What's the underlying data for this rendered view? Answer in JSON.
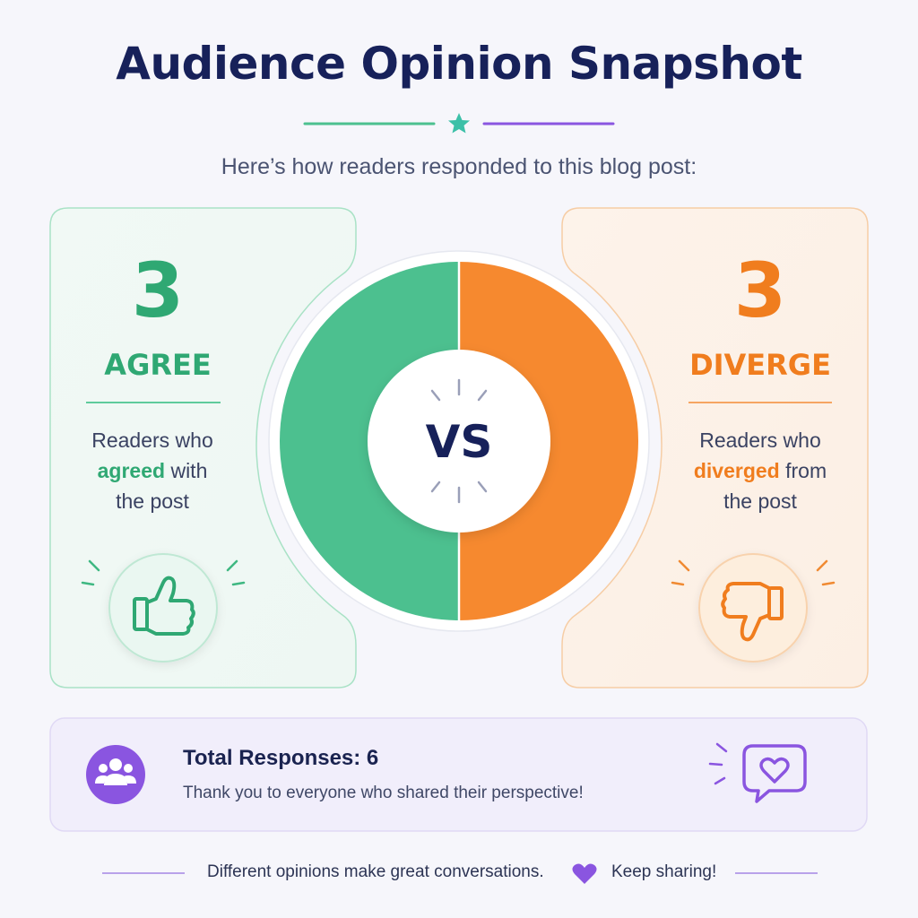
{
  "header": {
    "title": "Audience Opinion Snapshot",
    "subtitle": "Here’s how readers responded to this blog post:"
  },
  "chart_data": {
    "type": "pie",
    "categories": [
      "AGREE",
      "DIVERGE"
    ],
    "values": [
      3,
      3
    ],
    "center_label": "VS",
    "colors": [
      "#4cc08f",
      "#f6892f"
    ]
  },
  "agree": {
    "count": "3",
    "label": "AGREE",
    "desc_line1": "Readers who",
    "desc_hl": "agreed",
    "desc_after_hl": " with",
    "desc_line3": "the post",
    "icon": "thumbs-up-icon",
    "color": "#2fa873"
  },
  "diverge": {
    "count": "3",
    "label": "DIVERGE",
    "desc_line1": "Readers who",
    "desc_hl": "diverged",
    "desc_after_hl": " from",
    "desc_line3": "the post",
    "icon": "thumbs-down-icon",
    "color": "#f07d1e"
  },
  "summary": {
    "title": "Total Responses: 6",
    "subtitle": "Thank you to everyone who shared their perspective!",
    "icon": "users-icon",
    "side_icon": "heart-chat-icon",
    "accent": "#8a55e0"
  },
  "footer": {
    "text_left": "Different opinions make great conversations.",
    "text_right": "Keep sharing!",
    "icon": "heart-icon"
  }
}
